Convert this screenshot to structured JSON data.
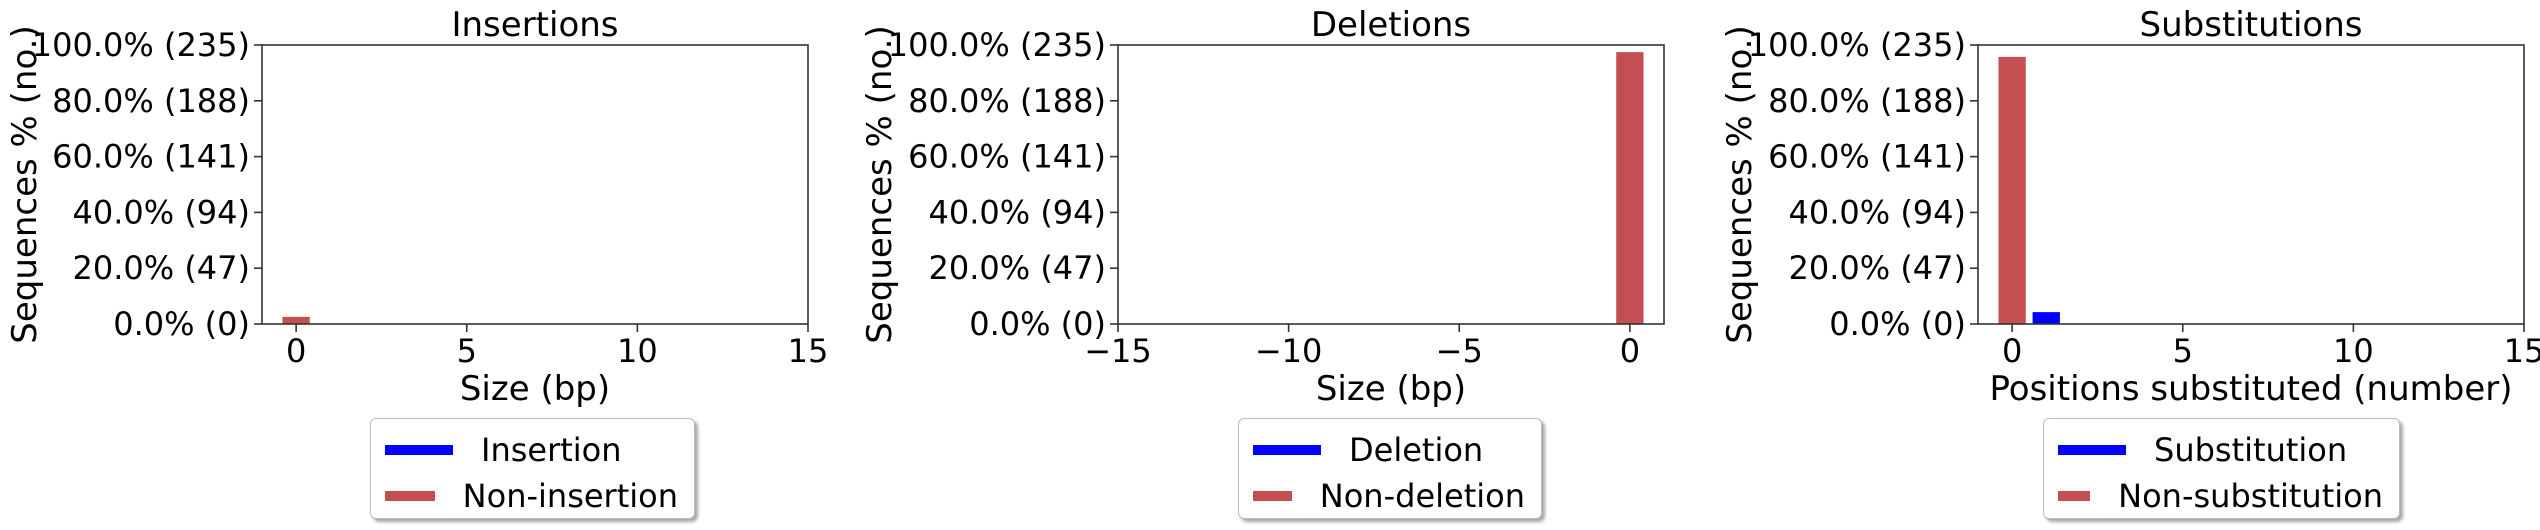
{
  "chart_data": [
    {
      "type": "bar",
      "title": "Insertions",
      "xlabel": "Size (bp)",
      "ylabel": "Sequences % (no.)",
      "xlim": [
        -1,
        15
      ],
      "ylim": [
        0,
        235
      ],
      "xticks": [
        "0",
        "5",
        "10",
        "15"
      ],
      "yticks": [
        "0.0% (0)",
        "20.0% (47)",
        "40.0% (94)",
        "60.0% (141)",
        "80.0% (188)",
        "100.0% (235)"
      ],
      "grid": false,
      "legend_placement": "below",
      "series": [
        {
          "name": "Insertion",
          "color": "#0000ff",
          "x": [
            0
          ],
          "values": [
            0
          ]
        },
        {
          "name": "Non-insertion",
          "color": "#c44e52",
          "x": [
            0
          ],
          "values": [
            6
          ]
        }
      ]
    },
    {
      "type": "bar",
      "title": "Deletions",
      "xlabel": "Size (bp)",
      "ylabel": "Sequences % (no.)",
      "xlim": [
        -15,
        1
      ],
      "ylim": [
        0,
        235
      ],
      "xticks": [
        "−15",
        "−10",
        "−5",
        "0"
      ],
      "yticks": [
        "0.0% (0)",
        "20.0% (47)",
        "40.0% (94)",
        "60.0% (141)",
        "80.0% (188)",
        "100.0% (235)"
      ],
      "grid": false,
      "legend_placement": "below",
      "series": [
        {
          "name": "Deletion",
          "color": "#0000ff",
          "x": [
            0
          ],
          "values": [
            0
          ]
        },
        {
          "name": "Non-deletion",
          "color": "#c44e52",
          "x": [
            0
          ],
          "values": [
            229
          ]
        }
      ]
    },
    {
      "type": "bar",
      "title": "Substitutions",
      "xlabel": "Positions substituted (number)",
      "ylabel": "Sequences % (no.)",
      "xlim": [
        -1,
        15
      ],
      "ylim": [
        0,
        235
      ],
      "xticks": [
        "0",
        "5",
        "10",
        "15"
      ],
      "yticks": [
        "0.0% (0)",
        "20.0% (47)",
        "40.0% (94)",
        "60.0% (141)",
        "80.0% (188)",
        "100.0% (235)"
      ],
      "grid": false,
      "legend_placement": "below",
      "series": [
        {
          "name": "Substitution",
          "color": "#0000ff",
          "x": [
            1
          ],
          "values": [
            10
          ]
        },
        {
          "name": "Non-substitution",
          "color": "#c44e52",
          "x": [
            0
          ],
          "values": [
            225
          ]
        }
      ]
    }
  ]
}
